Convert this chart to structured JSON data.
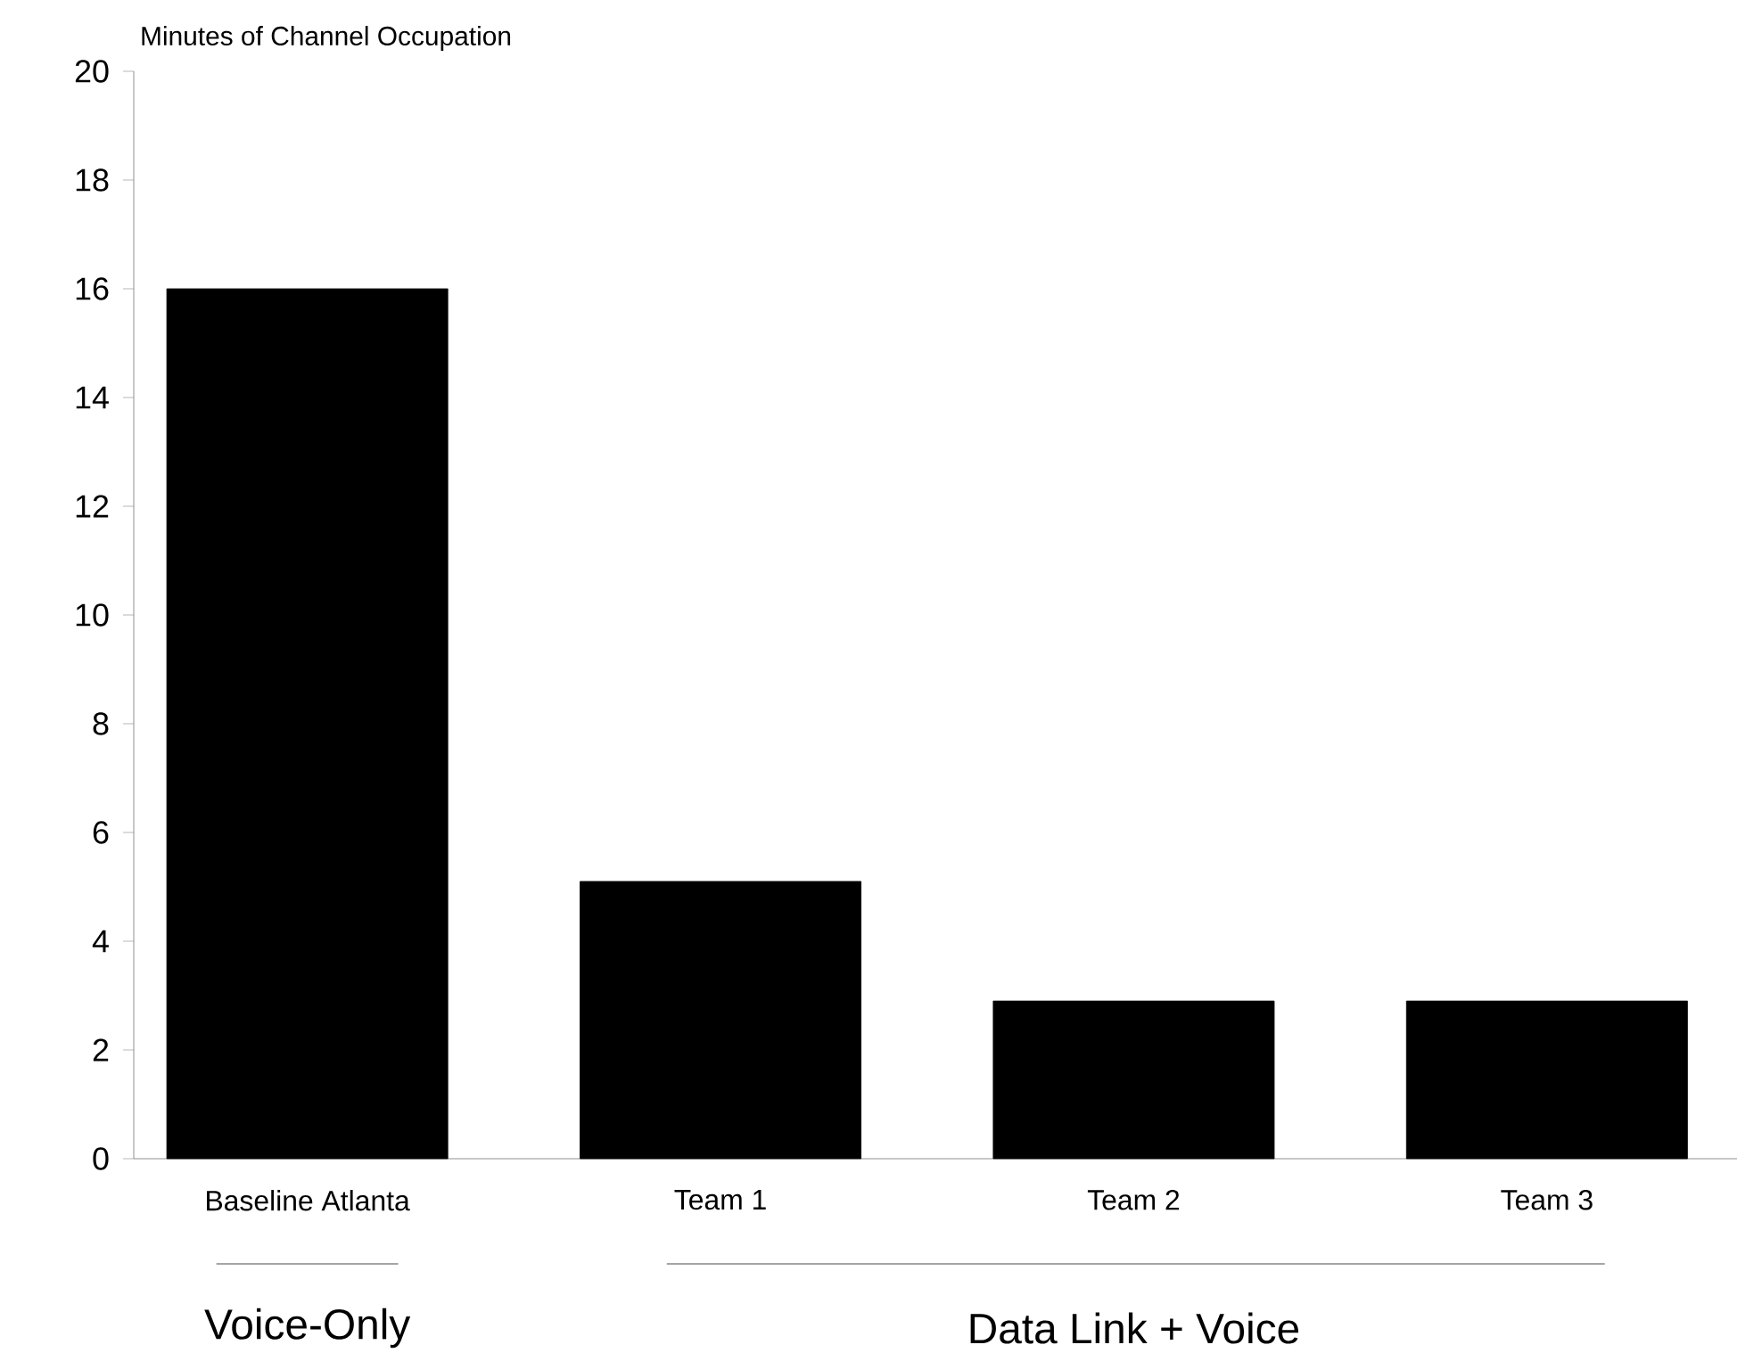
{
  "chart_data": {
    "type": "bar",
    "ylabel": "Minutes of Channel Occupation",
    "categories": [
      "Baseline Atlanta",
      "Team 1",
      "Team 2",
      "Team 3"
    ],
    "values": [
      16,
      5.1,
      2.9,
      2.9
    ],
    "color": "#000000",
    "ylim": [
      0,
      20
    ],
    "yticks": [
      0,
      2,
      4,
      6,
      8,
      10,
      12,
      14,
      16,
      18,
      20
    ],
    "grid": false,
    "annotations": [
      "Voice-Only",
      "Data Link + Voice"
    ]
  }
}
